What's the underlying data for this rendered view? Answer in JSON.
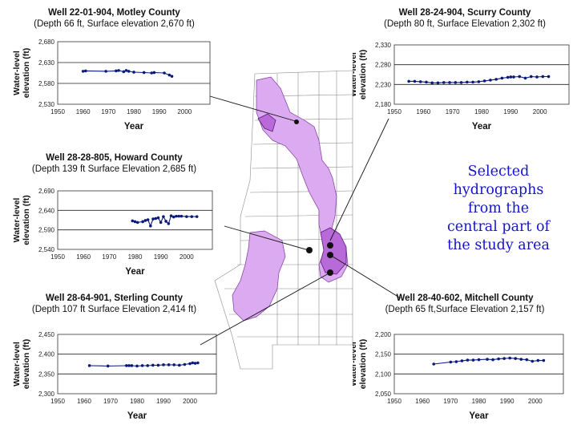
{
  "caption": {
    "line1": "Selected",
    "line2": "hydrographs",
    "line3": "from the",
    "line4": "central part of",
    "line5": "the study area"
  },
  "chart_data": [
    {
      "type": "line",
      "title": "Well 22-01-904, Motley County",
      "subtitle": "(Depth 66 ft, Surface elevation 2,670 ft)",
      "xlabel": "Year",
      "ylabel": "Water-level elevation (ft)",
      "xlim": [
        1950,
        2010
      ],
      "ylim": [
        2530,
        2680
      ],
      "xticks": [
        "1950",
        "1960",
        "1970",
        "1980",
        "1990",
        "2000"
      ],
      "yticks": [
        "2,530",
        "2,580",
        "2,630",
        "2,680"
      ],
      "x": [
        1960,
        1961,
        1969,
        1973,
        1974,
        1976,
        1977,
        1978,
        1980,
        1984,
        1987,
        1988,
        1992,
        1994,
        1995
      ],
      "y": [
        2609,
        2610,
        2609,
        2610,
        2611,
        2608,
        2611,
        2609,
        2607,
        2606,
        2605,
        2606,
        2605,
        2600,
        2597
      ]
    },
    {
      "type": "line",
      "title": "Well 28-24-904, Scurry County",
      "subtitle": "(Depth 80 ft, Surface Elevation 2,302 ft)",
      "xlabel": "Year",
      "ylabel": "Water-level elevation (ft)",
      "xlim": [
        1950,
        2010
      ],
      "ylim": [
        2180,
        2330
      ],
      "xticks": [
        "1950",
        "1960",
        "1970",
        "1980",
        "1990",
        "2000"
      ],
      "yticks": [
        "2,180",
        "2,230",
        "2,280",
        "2,330"
      ],
      "x": [
        1955,
        1957,
        1959,
        1961,
        1963,
        1965,
        1967,
        1969,
        1971,
        1973,
        1975,
        1977,
        1979,
        1981,
        1983,
        1985,
        1987,
        1989,
        1990,
        1991,
        1993,
        1995,
        1997,
        1999,
        2001,
        2003
      ],
      "y": [
        2238,
        2238,
        2237,
        2236,
        2234,
        2234,
        2235,
        2235,
        2235,
        2235,
        2236,
        2236,
        2237,
        2239,
        2241,
        2243,
        2246,
        2248,
        2249,
        2249,
        2250,
        2246,
        2250,
        2249,
        2250,
        2250
      ]
    },
    {
      "type": "line",
      "title": "Well 28-28-805, Howard County",
      "subtitle": "(Depth 139 ft Surface Elevation 2,685 ft)",
      "xlabel": "Year",
      "ylabel": "Water-level elevation (ft)",
      "xlim": [
        1950,
        2010
      ],
      "ylim": [
        2540,
        2690
      ],
      "xticks": [
        "1950",
        "1960",
        "1970",
        "1980",
        "1990",
        "2000"
      ],
      "yticks": [
        "2,540",
        "2,590",
        "2,640",
        "2,690"
      ],
      "x": [
        1979,
        1980,
        1981,
        1983,
        1984,
        1985,
        1986,
        1987,
        1988,
        1989,
        1990,
        1991,
        1992,
        1993,
        1994,
        1995,
        1996,
        1997,
        1998,
        2000,
        2002,
        2004
      ],
      "y": [
        2613,
        2611,
        2609,
        2611,
        2614,
        2616,
        2600,
        2618,
        2619,
        2621,
        2609,
        2624,
        2612,
        2606,
        2626,
        2623,
        2625,
        2625,
        2625,
        2624,
        2624,
        2624
      ]
    },
    {
      "type": "line",
      "title": "Well 28-64-901, Sterling County",
      "subtitle": "(Depth 107 ft Surface Elevation 2,414 ft)",
      "xlabel": "Year",
      "ylabel": "Water-level elevation (ft)",
      "xlim": [
        1950,
        2010
      ],
      "ylim": [
        2300,
        2450
      ],
      "xticks": [
        "1950",
        "1960",
        "1970",
        "1980",
        "1990",
        "2000"
      ],
      "yticks": [
        "2,300",
        "2,350",
        "2,400",
        "2,450"
      ],
      "x": [
        1962,
        1969,
        1976,
        1977,
        1978,
        1980,
        1982,
        1984,
        1986,
        1988,
        1990,
        1992,
        1994,
        1996,
        1998,
        2000,
        2001,
        2002,
        2003
      ],
      "y": [
        2371,
        2370,
        2371,
        2371,
        2371,
        2370,
        2371,
        2371,
        2372,
        2372,
        2373,
        2373,
        2373,
        2372,
        2374,
        2376,
        2378,
        2377,
        2378
      ]
    },
    {
      "type": "line",
      "title": "Well 28-40-602, Mitchell County",
      "subtitle": "(Depth 65 ft,Surface Elevation 2,157 ft)",
      "xlabel": "Year",
      "ylabel": "Water-level elevation (ft)",
      "xlim": [
        1950,
        2010
      ],
      "ylim": [
        2050,
        2200
      ],
      "xticks": [
        "1950",
        "1960",
        "1970",
        "1980",
        "1990",
        "2000"
      ],
      "yticks": [
        "2,050",
        "2,100",
        "2,150",
        "2,200"
      ],
      "x": [
        1964,
        1970,
        1972,
        1974,
        1976,
        1978,
        1980,
        1983,
        1985,
        1987,
        1989,
        1991,
        1993,
        1995,
        1997,
        1999,
        2001,
        2003
      ],
      "y": [
        2125,
        2130,
        2131,
        2133,
        2135,
        2135,
        2136,
        2137,
        2136,
        2138,
        2139,
        2140,
        2139,
        2137,
        2136,
        2132,
        2134,
        2134
      ]
    }
  ]
}
